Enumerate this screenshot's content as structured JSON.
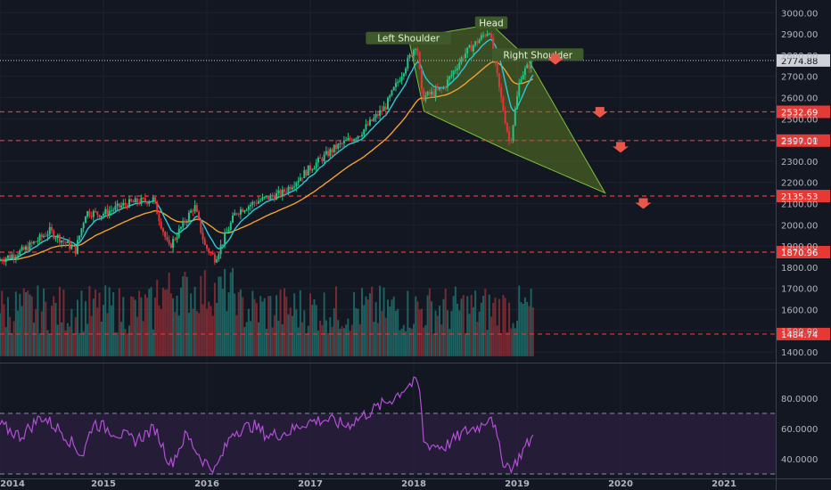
{
  "chart_data": {
    "type": "candlestick",
    "title": "",
    "colors": {
      "background": "#131722",
      "up_candle": "#26c281",
      "down_candle": "#e2343a",
      "ema_fast": "#2ec8d8",
      "ema_slow": "#f0a030",
      "support_line": "#e53935",
      "pattern_fill": "#6b8e23",
      "arrow": "#e8584a",
      "rsi_line": "#b24fd6",
      "rsi_band": "#2a1f3f",
      "last_price": "#ffffff"
    },
    "x_axis": {
      "labels": [
        "2014",
        "2015",
        "2016",
        "2017",
        "2018",
        "2019",
        "2020",
        "2021"
      ],
      "range": [
        2014,
        2021.5
      ]
    },
    "price_axis": {
      "range": [
        1350,
        3060
      ],
      "ticks": [
        1400,
        1500,
        1600,
        1700,
        1800,
        1900,
        2000,
        2100,
        2200,
        2300,
        2400,
        2500,
        2600,
        2700,
        2800,
        2900,
        3000
      ],
      "tick_labels": [
        "1400.00",
        "1500.00",
        "1600.00",
        "1700.00",
        "1800.00",
        "1900.00",
        "2000.00",
        "2100.00",
        "2200.00",
        "2300.00",
        "2400.00",
        "2500.00",
        "2600.00",
        "2700.00",
        "2800.00",
        "2900.00",
        "3000.00"
      ]
    },
    "horizontal_levels": [
      {
        "value": 2532.69,
        "label": "2532.69"
      },
      {
        "value": 2397.01,
        "label": "2397.01"
      },
      {
        "value": 2135.53,
        "label": "2135.53"
      },
      {
        "value": 1870.96,
        "label": "1870.96"
      },
      {
        "value": 1484.74,
        "label": "1484.74"
      }
    ],
    "last_price": {
      "value": 2774.88,
      "label": "2774.88"
    },
    "annotations": [
      {
        "text": "Left Shoulder",
        "x": 2017.95,
        "y": 2868
      },
      {
        "text": "Head",
        "x": 2018.75,
        "y": 2940
      },
      {
        "text": "Right Shoulder",
        "x": 2019.2,
        "y": 2790
      }
    ],
    "pattern_polygon": [
      [
        2017.95,
        2880
      ],
      [
        2018.1,
        2535
      ],
      [
        2018.95,
        2340
      ],
      [
        2019.85,
        2150
      ],
      [
        2019.1,
        2785
      ],
      [
        2018.75,
        2945
      ]
    ],
    "arrows": [
      {
        "x": 2019.37,
        "y": 2780
      },
      {
        "x": 2019.8,
        "y": 2530
      },
      {
        "x": 2020.0,
        "y": 2365
      },
      {
        "x": 2020.22,
        "y": 2100
      }
    ],
    "price_series": [
      [
        2014.0,
        1830
      ],
      [
        2014.25,
        1880
      ],
      [
        2014.5,
        1970
      ],
      [
        2014.75,
        1880
      ],
      [
        2014.85,
        2060
      ],
      [
        2015.0,
        2050
      ],
      [
        2015.25,
        2100
      ],
      [
        2015.5,
        2120
      ],
      [
        2015.65,
        1890
      ],
      [
        2015.9,
        2090
      ],
      [
        2016.0,
        1900
      ],
      [
        2016.1,
        1840
      ],
      [
        2016.3,
        2060
      ],
      [
        2016.5,
        2110
      ],
      [
        2016.75,
        2150
      ],
      [
        2017.0,
        2260
      ],
      [
        2017.25,
        2360
      ],
      [
        2017.5,
        2430
      ],
      [
        2017.75,
        2560
      ],
      [
        2017.95,
        2760
      ],
      [
        2018.05,
        2860
      ],
      [
        2018.1,
        2600
      ],
      [
        2018.3,
        2640
      ],
      [
        2018.5,
        2800
      ],
      [
        2018.75,
        2920
      ],
      [
        2018.85,
        2630
      ],
      [
        2018.95,
        2380
      ],
      [
        2019.05,
        2700
      ],
      [
        2019.17,
        2775
      ]
    ],
    "rsi": {
      "range": [
        30,
        100
      ],
      "levels": [
        30,
        70
      ],
      "ticks": [
        40,
        60,
        80
      ],
      "tick_labels": [
        "40.0000",
        "60.0000",
        "80.0000"
      ],
      "series": [
        [
          2014.0,
          62
        ],
        [
          2014.2,
          55
        ],
        [
          2014.4,
          68
        ],
        [
          2014.6,
          58
        ],
        [
          2014.8,
          42
        ],
        [
          2014.9,
          64
        ],
        [
          2015.1,
          58
        ],
        [
          2015.3,
          52
        ],
        [
          2015.5,
          60
        ],
        [
          2015.65,
          36
        ],
        [
          2015.8,
          56
        ],
        [
          2015.95,
          40
        ],
        [
          2016.08,
          32
        ],
        [
          2016.25,
          58
        ],
        [
          2016.45,
          62
        ],
        [
          2016.6,
          55
        ],
        [
          2016.8,
          58
        ],
        [
          2016.95,
          64
        ],
        [
          2017.15,
          66
        ],
        [
          2017.35,
          62
        ],
        [
          2017.6,
          72
        ],
        [
          2017.8,
          80
        ],
        [
          2017.95,
          89
        ],
        [
          2018.05,
          90
        ],
        [
          2018.1,
          50
        ],
        [
          2018.3,
          48
        ],
        [
          2018.5,
          58
        ],
        [
          2018.65,
          62
        ],
        [
          2018.75,
          70
        ],
        [
          2018.85,
          40
        ],
        [
          2018.95,
          33
        ],
        [
          2019.05,
          45
        ],
        [
          2019.17,
          56
        ]
      ]
    }
  }
}
